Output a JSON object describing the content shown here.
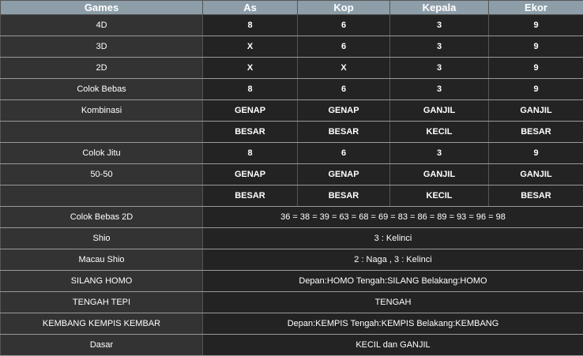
{
  "headers": [
    "Games",
    "As",
    "Kop",
    "Kepala",
    "Ekor"
  ],
  "rows": [
    {
      "game": "4D",
      "values": [
        "8",
        "6",
        "3",
        "9"
      ]
    },
    {
      "game": "3D",
      "values": [
        "X",
        "6",
        "3",
        "9"
      ]
    },
    {
      "game": "2D",
      "values": [
        "X",
        "X",
        "3",
        "9"
      ]
    },
    {
      "game": "Colok Bebas",
      "values": [
        "8",
        "6",
        "3",
        "9"
      ]
    },
    {
      "game": "Kombinasi",
      "values": [
        "GENAP",
        "GENAP",
        "GANJIL",
        "GANJIL"
      ]
    },
    {
      "game": "",
      "values": [
        "BESAR",
        "BESAR",
        "KECIL",
        "BESAR"
      ]
    },
    {
      "game": "Colok Jitu",
      "values": [
        "8",
        "6",
        "3",
        "9"
      ]
    },
    {
      "game": "50-50",
      "values": [
        "GENAP",
        "GENAP",
        "GANJIL",
        "GANJIL"
      ]
    },
    {
      "game": "",
      "values": [
        "BESAR",
        "BESAR",
        "KECIL",
        "BESAR"
      ]
    }
  ],
  "spans": [
    {
      "game": "Colok Bebas 2D",
      "value": "36 = 38 = 39 = 63 = 68 = 69 = 83 = 86 = 89 = 93 = 96 = 98"
    },
    {
      "game": "Shio",
      "value": "3 : Kelinci"
    },
    {
      "game": "Macau Shio",
      "value": "2 : Naga , 3 : Kelinci"
    },
    {
      "game": "SILANG HOMO",
      "value": "Depan:HOMO Tengah:SILANG Belakang:HOMO"
    },
    {
      "game": "TENGAH TEPI",
      "value": "TENGAH"
    },
    {
      "game": "KEMBANG KEMPIS KEMBAR",
      "value": "Depan:KEMPIS Tengah:KEMPIS Belakang:KEMBANG"
    },
    {
      "game": "Dasar",
      "value": "KECIL dan GANJIL"
    }
  ]
}
